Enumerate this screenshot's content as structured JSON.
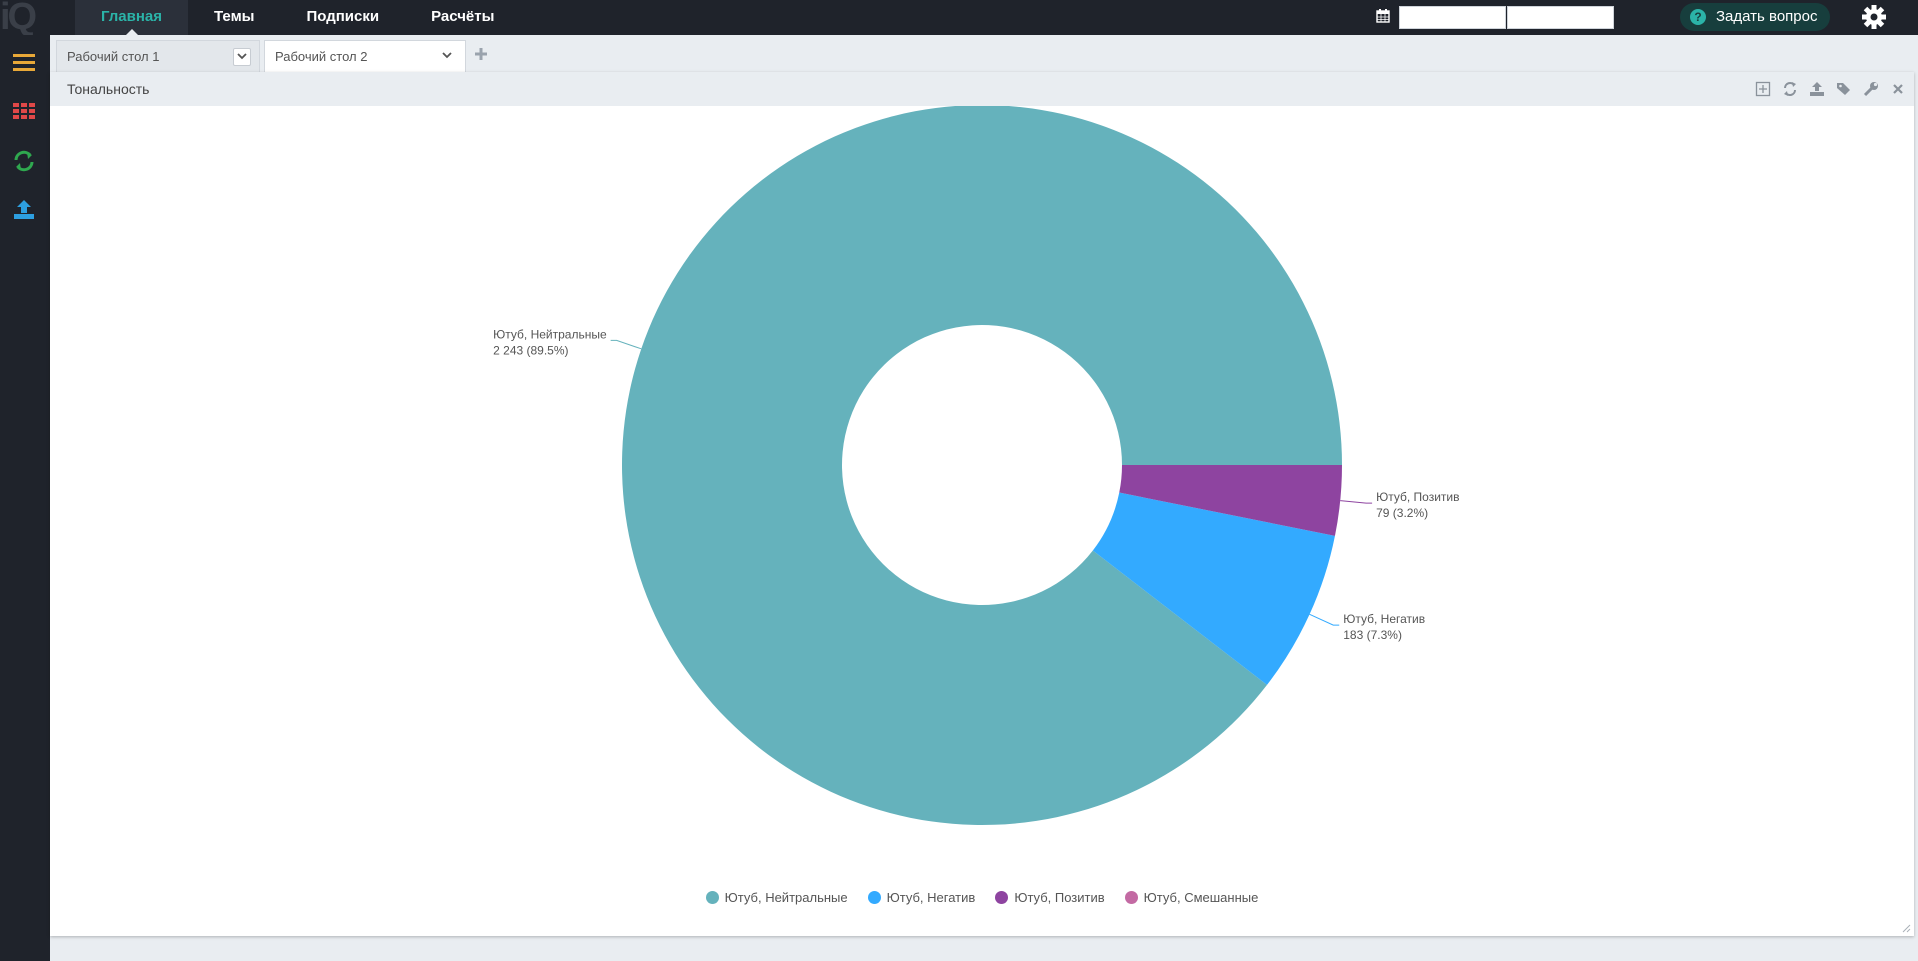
{
  "app": {
    "logo_text": "iQ",
    "nav": [
      {
        "label": "Главная",
        "active": true
      },
      {
        "label": "Темы",
        "active": false
      },
      {
        "label": "Подписки",
        "active": false
      },
      {
        "label": "Расчёты",
        "active": false
      }
    ],
    "date_from": "",
    "date_to": "",
    "ask_label": "Задать вопрос",
    "ask_icon": "question-circle-icon"
  },
  "sidebar": {
    "icons": [
      "menu-icon",
      "grid-icon",
      "refresh-icon",
      "upload-icon"
    ],
    "colors": [
      "#e8a838",
      "#e04848",
      "#2fa84f",
      "#2d9fe0"
    ]
  },
  "tabs": [
    {
      "label": "Рабочий стол 1",
      "active": false
    },
    {
      "label": "Рабочий стол 2",
      "active": true
    }
  ],
  "panel": {
    "title": "Тональность",
    "tools": [
      "expand-icon",
      "refresh-icon",
      "export-icon",
      "tags-icon",
      "wrench-icon",
      "close-icon"
    ]
  },
  "chart_data": {
    "type": "pie",
    "donut": true,
    "slices": [
      {
        "name": "Ютуб, Нейтральные",
        "value": 2243,
        "display": "2 243",
        "percent": "89.5%",
        "color": "#65b2bc"
      },
      {
        "name": "Ютуб, Негатив",
        "value": 183,
        "display": "183",
        "percent": "7.3%",
        "color": "#33aaff"
      },
      {
        "name": "Ютуб, Позитив",
        "value": 79,
        "display": "79",
        "percent": "3.2%",
        "color": "#8e44a0"
      },
      {
        "name": "Ютуб, Смешанные",
        "value": 0,
        "display": "0",
        "percent": "0%",
        "color": "#c36aa3"
      }
    ],
    "legend": [
      "Ютуб, Нейтральные",
      "Ютуб, Негатив",
      "Ютуб, Позитив",
      "Ютуб, Смешанные"
    ],
    "legend_position": "bottom"
  }
}
